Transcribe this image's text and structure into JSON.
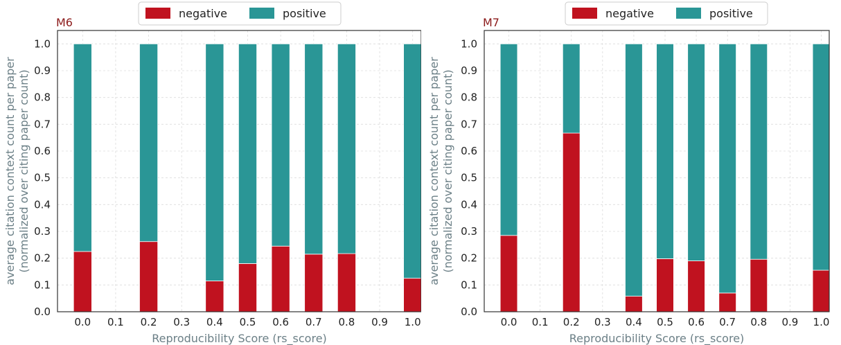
{
  "chart_data": [
    {
      "type": "bar",
      "stacked": true,
      "panel_label": "M6",
      "title": "",
      "xlabel": "Reproducibility Score (rs_score)",
      "ylabel_line1": "average citation context count per paper",
      "ylabel_line2": "(normalized over citing paper count)",
      "categories": [
        "0.0",
        "0.1",
        "0.2",
        "0.3",
        "0.4",
        "0.5",
        "0.6",
        "0.7",
        "0.8",
        "0.9",
        "1.0"
      ],
      "yticks": [
        "0.0",
        "0.1",
        "0.2",
        "0.3",
        "0.4",
        "0.5",
        "0.6",
        "0.7",
        "0.8",
        "0.9",
        "1.0"
      ],
      "ylim": [
        0,
        1.05
      ],
      "grid": true,
      "legend_position": "top-center",
      "series": [
        {
          "name": "negative",
          "color": "#c0121f",
          "values": [
            0.225,
            0,
            0.262,
            0,
            0.115,
            0.18,
            0.245,
            0.215,
            0.217,
            0,
            0.125
          ]
        },
        {
          "name": "positive",
          "color": "#2a9696",
          "values": [
            0.775,
            0,
            0.738,
            0,
            0.885,
            0.82,
            0.755,
            0.785,
            0.783,
            0,
            0.875
          ]
        }
      ]
    },
    {
      "type": "bar",
      "stacked": true,
      "panel_label": "M7",
      "title": "",
      "xlabel": "Reproducibility Score (rs_score)",
      "ylabel_line1": "average citation context count per paper",
      "ylabel_line2": "(normalized over citing paper count)",
      "categories": [
        "0.0",
        "0.1",
        "0.2",
        "0.3",
        "0.4",
        "0.5",
        "0.6",
        "0.7",
        "0.8",
        "0.9",
        "1.0"
      ],
      "yticks": [
        "0.0",
        "0.1",
        "0.2",
        "0.3",
        "0.4",
        "0.5",
        "0.6",
        "0.7",
        "0.8",
        "0.9",
        "1.0"
      ],
      "ylim": [
        0,
        1.05
      ],
      "grid": true,
      "legend_position": "top-center",
      "series": [
        {
          "name": "negative",
          "color": "#c0121f",
          "values": [
            0.285,
            0,
            0.667,
            0,
            0.058,
            0.198,
            0.19,
            0.07,
            0.196,
            0,
            0.155
          ]
        },
        {
          "name": "positive",
          "color": "#2a9696",
          "values": [
            0.715,
            0,
            0.333,
            0,
            0.942,
            0.802,
            0.81,
            0.93,
            0.804,
            0,
            0.845
          ]
        }
      ]
    }
  ]
}
